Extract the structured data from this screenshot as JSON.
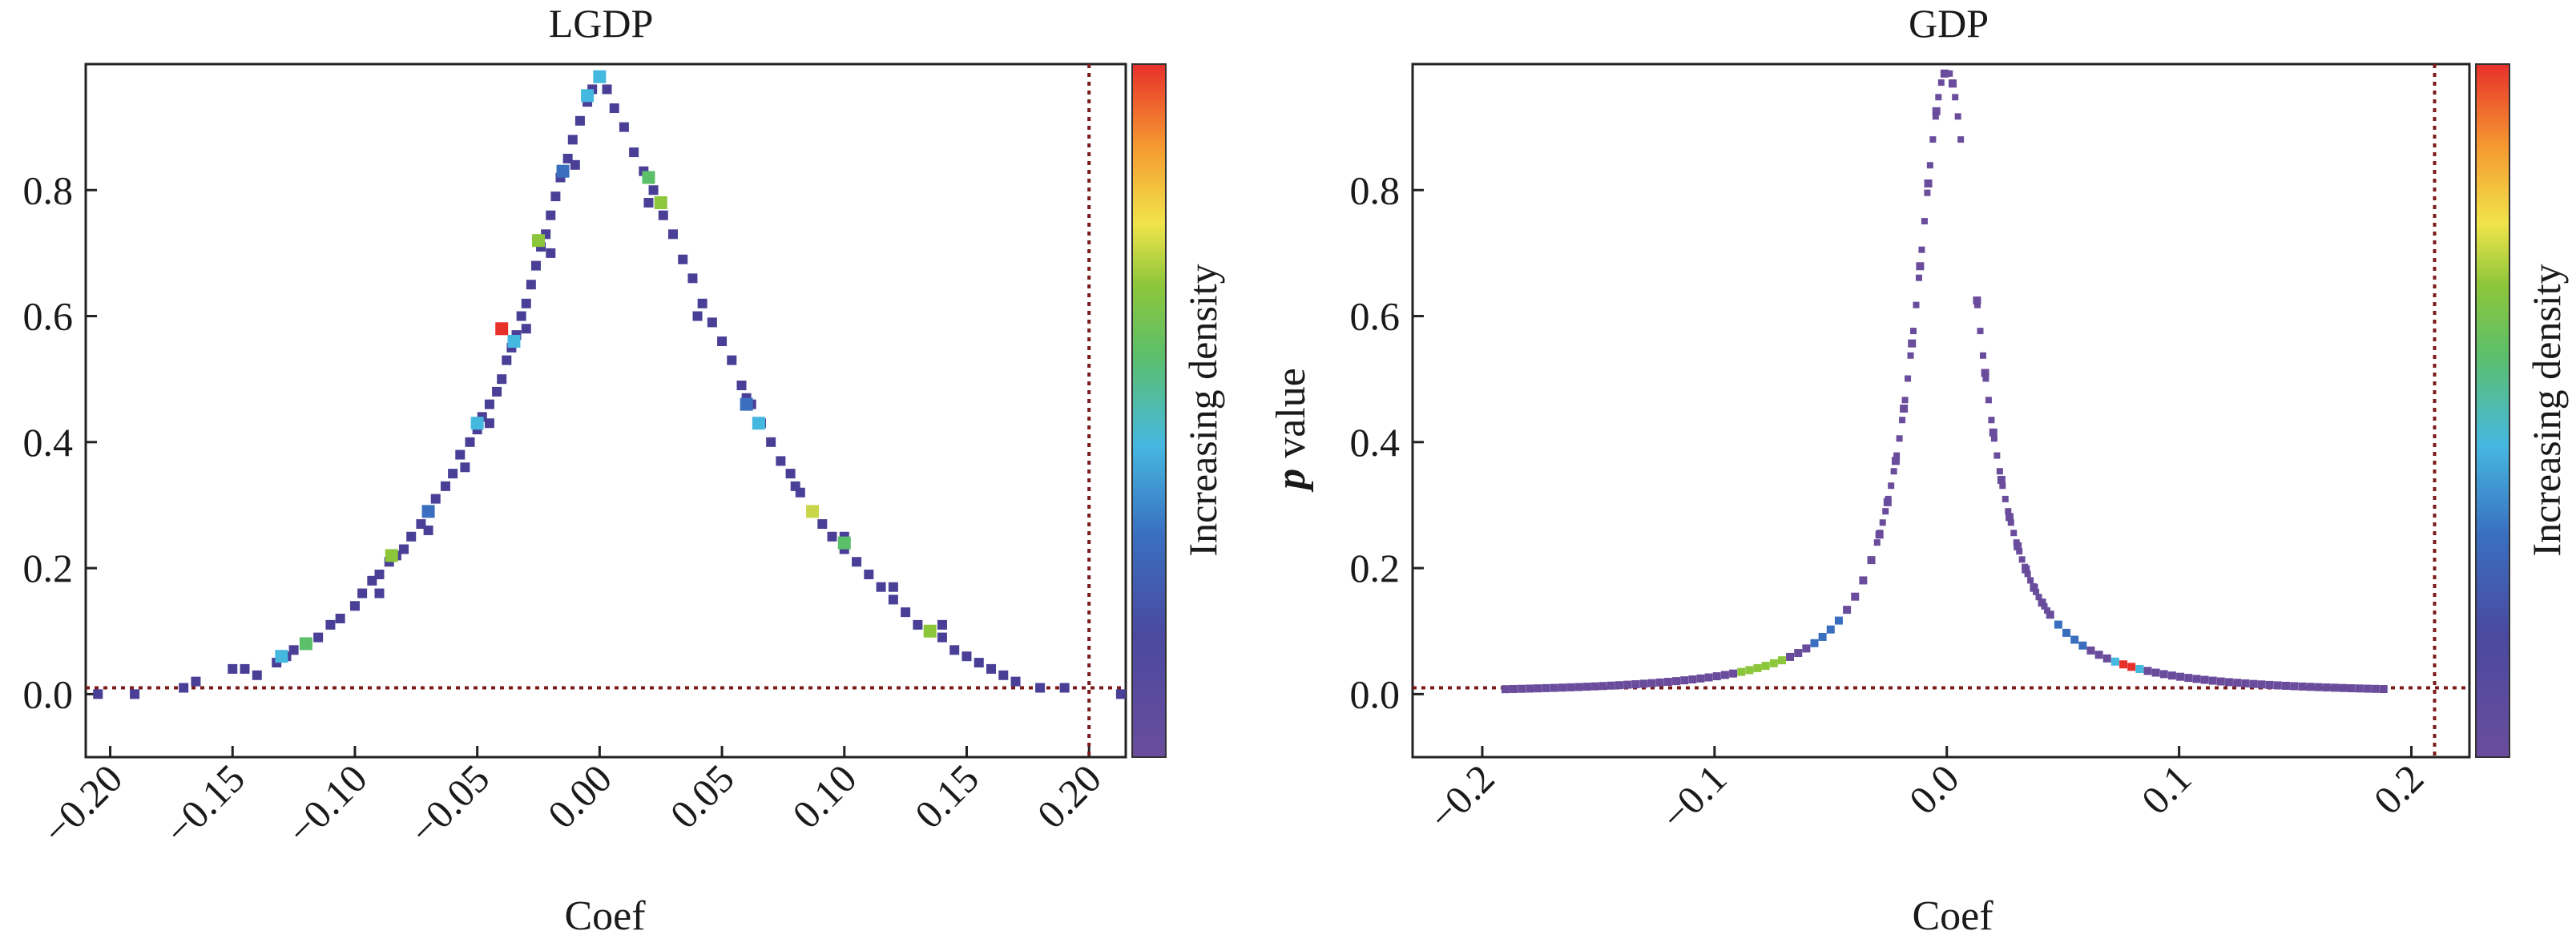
{
  "chart_data": [
    {
      "type": "scatter",
      "title": "LGDP",
      "xlabel": "Coef",
      "ylabel": "",
      "xlim": [
        -0.21,
        0.215
      ],
      "ylim": [
        -0.1,
        1.0
      ],
      "xticks": [
        -0.2,
        -0.15,
        -0.1,
        -0.05,
        0.0,
        0.05,
        0.1,
        0.15,
        0.2
      ],
      "xtick_labels": [
        "−0.20",
        "−0.15",
        "−0.10",
        "−0.05",
        "0.00",
        "0.05",
        "0.10",
        "0.15",
        "0.20"
      ],
      "yticks": [
        0.0,
        0.2,
        0.4,
        0.6,
        0.8
      ],
      "ytick_labels": [
        "0.0",
        "0.2",
        "0.4",
        "0.6",
        "0.8"
      ],
      "hline_y": 0.01,
      "vline_x": 0.2,
      "colorbar_label": "Increasing density",
      "points": [
        [
          -0.205,
          0.0
        ],
        [
          -0.19,
          0.0
        ],
        [
          -0.17,
          0.01
        ],
        [
          -0.165,
          0.02
        ],
        [
          -0.15,
          0.04
        ],
        [
          -0.145,
          0.04
        ],
        [
          -0.14,
          0.03
        ],
        [
          -0.132,
          0.05
        ],
        [
          -0.128,
          0.06
        ],
        [
          -0.125,
          0.07
        ],
        [
          -0.12,
          0.08
        ],
        [
          -0.115,
          0.09
        ],
        [
          -0.11,
          0.11
        ],
        [
          -0.106,
          0.12
        ],
        [
          -0.1,
          0.14
        ],
        [
          -0.097,
          0.16
        ],
        [
          -0.093,
          0.18
        ],
        [
          -0.09,
          0.19
        ],
        [
          -0.086,
          0.21
        ],
        [
          -0.083,
          0.22
        ],
        [
          -0.08,
          0.23
        ],
        [
          -0.077,
          0.25
        ],
        [
          -0.073,
          0.27
        ],
        [
          -0.07,
          0.29
        ],
        [
          -0.067,
          0.31
        ],
        [
          -0.063,
          0.33
        ],
        [
          -0.06,
          0.35
        ],
        [
          -0.057,
          0.38
        ],
        [
          -0.053,
          0.4
        ],
        [
          -0.05,
          0.42
        ],
        [
          -0.048,
          0.44
        ],
        [
          -0.045,
          0.46
        ],
        [
          -0.042,
          0.48
        ],
        [
          -0.04,
          0.5
        ],
        [
          -0.038,
          0.53
        ],
        [
          -0.036,
          0.55
        ],
        [
          -0.034,
          0.57
        ],
        [
          -0.032,
          0.6
        ],
        [
          -0.03,
          0.62
        ],
        [
          -0.028,
          0.65
        ],
        [
          -0.026,
          0.68
        ],
        [
          -0.024,
          0.71
        ],
        [
          -0.022,
          0.73
        ],
        [
          -0.02,
          0.76
        ],
        [
          -0.018,
          0.79
        ],
        [
          -0.016,
          0.82
        ],
        [
          -0.013,
          0.85
        ],
        [
          -0.011,
          0.88
        ],
        [
          -0.008,
          0.91
        ],
        [
          -0.005,
          0.94
        ],
        [
          -0.003,
          0.96
        ],
        [
          0.0,
          0.98
        ],
        [
          0.003,
          0.96
        ],
        [
          0.006,
          0.93
        ],
        [
          0.01,
          0.9
        ],
        [
          0.014,
          0.86
        ],
        [
          0.018,
          0.83
        ],
        [
          0.022,
          0.8
        ],
        [
          0.026,
          0.76
        ],
        [
          0.03,
          0.73
        ],
        [
          0.034,
          0.69
        ],
        [
          0.038,
          0.66
        ],
        [
          0.042,
          0.62
        ],
        [
          0.046,
          0.59
        ],
        [
          0.05,
          0.56
        ],
        [
          0.054,
          0.53
        ],
        [
          0.058,
          0.49
        ],
        [
          0.062,
          0.46
        ],
        [
          0.066,
          0.43
        ],
        [
          0.07,
          0.4
        ],
        [
          0.074,
          0.37
        ],
        [
          0.078,
          0.35
        ],
        [
          0.082,
          0.32
        ],
        [
          0.087,
          0.29
        ],
        [
          0.091,
          0.27
        ],
        [
          0.095,
          0.25
        ],
        [
          0.1,
          0.23
        ],
        [
          0.105,
          0.21
        ],
        [
          0.11,
          0.19
        ],
        [
          0.115,
          0.17
        ],
        [
          0.12,
          0.15
        ],
        [
          0.125,
          0.13
        ],
        [
          0.13,
          0.11
        ],
        [
          0.135,
          0.1
        ],
        [
          0.14,
          0.09
        ],
        [
          0.145,
          0.07
        ],
        [
          0.15,
          0.06
        ],
        [
          0.155,
          0.05
        ],
        [
          0.16,
          0.04
        ],
        [
          0.165,
          0.03
        ],
        [
          0.17,
          0.02
        ],
        [
          0.18,
          0.01
        ],
        [
          0.19,
          0.01
        ],
        [
          0.213,
          0.0
        ],
        [
          -0.055,
          0.36
        ],
        [
          -0.045,
          0.43
        ],
        [
          -0.07,
          0.26
        ],
        [
          -0.09,
          0.16
        ],
        [
          -0.03,
          0.58
        ],
        [
          -0.02,
          0.7
        ],
        [
          -0.01,
          0.84
        ],
        [
          0.02,
          0.78
        ],
        [
          0.04,
          0.6
        ],
        [
          0.06,
          0.47
        ],
        [
          0.08,
          0.33
        ],
        [
          0.1,
          0.25
        ],
        [
          0.12,
          0.17
        ],
        [
          0.14,
          0.11
        ]
      ],
      "highlight_points": [
        [
          -0.13,
          0.06
        ],
        [
          -0.12,
          0.08
        ],
        [
          -0.085,
          0.22
        ],
        [
          -0.07,
          0.29
        ],
        [
          -0.05,
          0.43
        ],
        [
          -0.035,
          0.56
        ],
        [
          -0.04,
          0.58
        ],
        [
          -0.025,
          0.72
        ],
        [
          -0.015,
          0.83
        ],
        [
          -0.005,
          0.95
        ],
        [
          0.0,
          0.98
        ],
        [
          0.02,
          0.82
        ],
        [
          0.025,
          0.78
        ],
        [
          0.06,
          0.46
        ],
        [
          0.065,
          0.43
        ],
        [
          0.087,
          0.29
        ],
        [
          0.1,
          0.24
        ],
        [
          0.135,
          0.1
        ]
      ]
    },
    {
      "type": "scatter",
      "title": "GDP",
      "xlabel": "Coef",
      "ylabel_bold": "p",
      "ylabel": "value",
      "xlim": [
        -0.23,
        0.225
      ],
      "ylim": [
        -0.1,
        1.0
      ],
      "xticks": [
        -0.2,
        -0.1,
        0.0,
        0.1,
        0.2
      ],
      "xtick_labels": [
        "−0.2",
        "−0.1",
        "0.0",
        "0.1",
        "0.2"
      ],
      "yticks": [
        0.0,
        0.2,
        0.4,
        0.6,
        0.8
      ],
      "ytick_labels": [
        "0.0",
        "0.2",
        "0.4",
        "0.6",
        "0.8"
      ],
      "hline_y": 0.01,
      "vline_x": 0.21,
      "colorbar_label": "Increasing density",
      "curve_scale": 0.017,
      "curve_x_range": [
        -0.19,
        0.19
      ],
      "gap_x": [
        0.006,
        0.012
      ],
      "dense_range": [
        0.07,
        0.085
      ],
      "secondary_dense_range": [
        -0.09,
        -0.07
      ]
    }
  ]
}
